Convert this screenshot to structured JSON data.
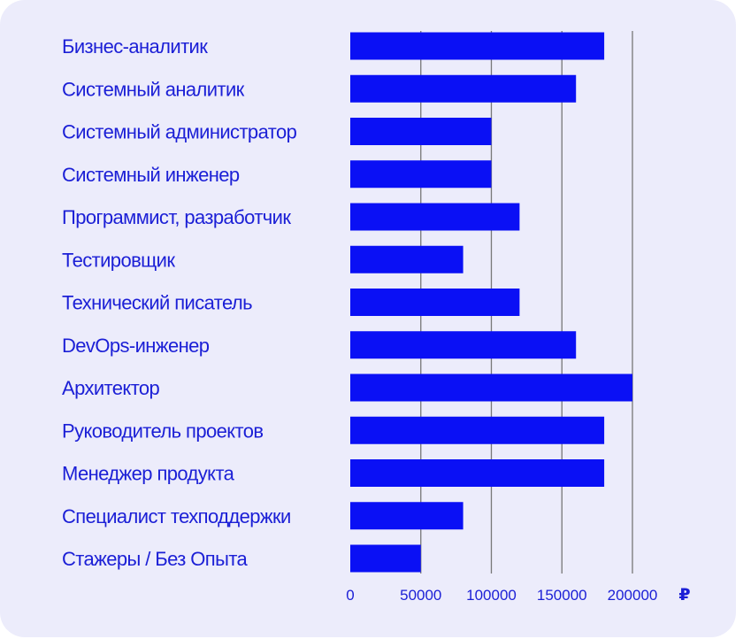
{
  "chart_data": {
    "type": "bar",
    "orientation": "horizontal",
    "categories": [
      "Бизнес-аналитик",
      "Системный аналитик",
      "Системный администратор",
      "Системный инженер",
      "Программист, разработчик",
      "Тестировщик",
      "Технический писатель",
      "DevOps-инженер",
      "Архитектор",
      "Руководитель проектов",
      "Менеджер продукта",
      "Специалист техподдержки",
      "Стажеры / Без Опыта"
    ],
    "values": [
      180000,
      160000,
      100000,
      100000,
      120000,
      80000,
      120000,
      160000,
      200000,
      180000,
      180000,
      80000,
      50000
    ],
    "xlim": [
      0,
      200000
    ],
    "xticks": [
      "0",
      "50000",
      "100000",
      "150000",
      "200000"
    ],
    "currency_label": "₽",
    "grid": true
  },
  "colors": {
    "bar": "#0a10f5",
    "text": "#1b1fd6",
    "grid": "#777777",
    "card": "#ececfb"
  }
}
